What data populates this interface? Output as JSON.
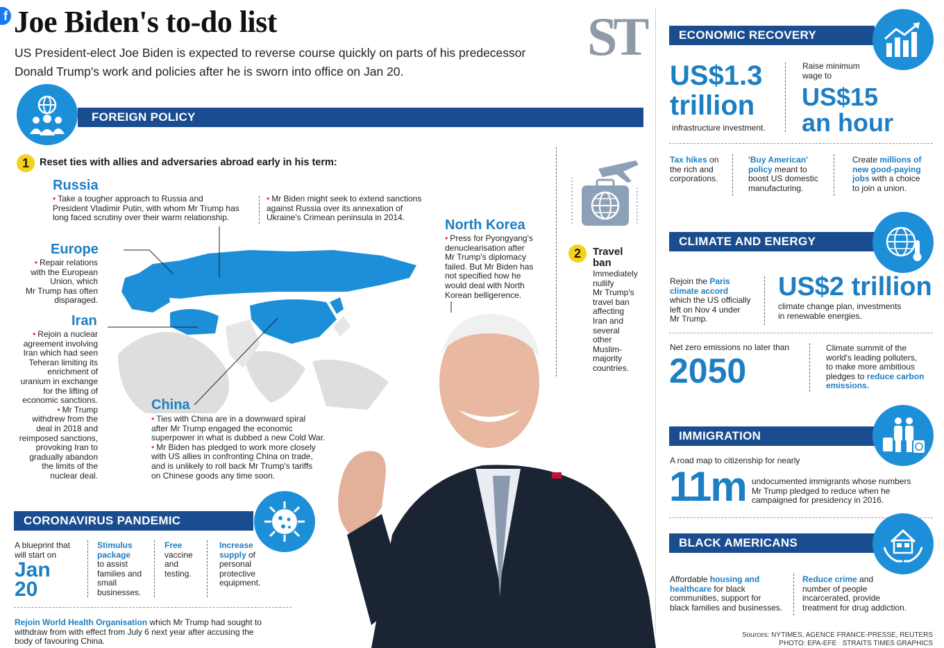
{
  "header": {
    "title": "Joe Biden's to-do list",
    "subtitle_line1": "US President-elect Joe Biden is expected to reverse course quickly on parts of his predecessor",
    "subtitle_line2": "Donald Trump's work and policies after he is sworn into office on Jan 20.",
    "logo": "ST"
  },
  "foreign_policy": {
    "title": "FOREIGN POLICY",
    "item1_number": "1",
    "item1_text": "Reset ties with allies and adversaries abroad early in his term:",
    "russia": {
      "name": "Russia",
      "text1": "Take a tougher approach to Russia and",
      "text2": "President Vladimir Putin, with whom Mr Trump has",
      "text3": "long faced scrutiny over their warm relationship.",
      "sanction1": "Mr Biden might seek to extend sanctions",
      "sanction2": "against Russia over its annexation of",
      "sanction3": "Ukraine's Crimean peninsula in 2014."
    },
    "europe": {
      "name": "Europe",
      "lines": [
        "Repair relations",
        "with the European",
        "Union, which",
        "Mr Trump has often",
        "disparaged."
      ]
    },
    "iran": {
      "name": "Iran",
      "lines": [
        "Rejoin a nuclear",
        "agreement involving",
        "Iran which had seen",
        "Teheran limiting its",
        "enrichment of",
        "uranium in exchange",
        "for the lifting of",
        "economic sanctions."
      ],
      "lines2": [
        "Mr Trump",
        "withdrew from the",
        "deal in 2018 and",
        "reimposed sanctions,",
        "provoking Iran to",
        "gradually abandon",
        "the limits of the",
        "nuclear deal."
      ]
    },
    "north_korea": {
      "name": "North Korea",
      "lines": [
        "Press for Pyongyang's",
        "denuclearisation after",
        "Mr Trump's diplomacy",
        "failed. But Mr Biden has",
        "not specified how he",
        "would deal with North",
        "Korean belligerence."
      ]
    },
    "china": {
      "name": "China",
      "lines": [
        "Ties with China are in a downward spiral",
        "after Mr Trump engaged the economic",
        "superpower in what is dubbed a new Cold War."
      ],
      "lines2": [
        "Mr Biden has pledged to work more closely",
        "with US allies in confronting China on trade,",
        "and is unlikely to roll back Mr Trump's tariffs",
        "on Chinese goods any time soon."
      ]
    },
    "item2_number": "2",
    "travel_ban_title1": "Travel",
    "travel_ban_title2": "ban",
    "travel_ban_lines": [
      "Immediately",
      "nullify",
      "Mr Trump's",
      "travel ban",
      "affecting",
      "Iran and",
      "several",
      "other",
      "Muslim-",
      "majority",
      "countries."
    ]
  },
  "coronavirus": {
    "title": "CORONAVIRUS PANDEMIC",
    "col1": {
      "line1": "A blueprint that",
      "line2": "will start on",
      "big1": "Jan",
      "big2": "20"
    },
    "col2": {
      "hl1": "Stimulus",
      "hl2": "package",
      "rest": [
        "to assist",
        "families and",
        "small",
        "businesses."
      ]
    },
    "col3": {
      "hl1": "Free",
      "rest": [
        "vaccine",
        "and",
        "testing."
      ]
    },
    "col4": {
      "hl1": "Increase",
      "hl2": "supply",
      "rest1": " of",
      "rest": [
        "personal",
        "protective",
        "equipment."
      ]
    },
    "who_highlight": "Rejoin World Health Organisation",
    "who_rest1": " which Mr Trump had sought to",
    "who_line2": "withdraw from with effect from July 6 next year after accusing the",
    "who_line3": "body of favouring China."
  },
  "economic": {
    "title": "ECONOMIC RECOVERY",
    "big1": "US$1.3",
    "big2": "trillion",
    "infra": "infrastructure investment.",
    "wage1": "Raise minimum",
    "wage2": "wage to",
    "wage_big1": "US$15",
    "wage_big2": "an hour",
    "tax_hl": "Tax hikes",
    "tax_rest1": " on",
    "tax_lines": [
      "the rich and",
      "corporations."
    ],
    "buy_hl1": "'Buy American'",
    "buy_hl2": "policy",
    "buy_rest1": " meant to",
    "buy_lines": [
      "boost US domestic",
      "manufacturing."
    ],
    "jobs_pre": "Create ",
    "jobs_hl1": "millions of",
    "jobs_hl2": "new good-paying",
    "jobs_hl3": "jobs",
    "jobs_rest": " with a choice",
    "jobs_line4": "to join a union."
  },
  "climate": {
    "title": "CLIMATE AND ENERGY",
    "paris_pre": "Rejoin the ",
    "paris_hl1": "Paris",
    "paris_hl2": "climate accord",
    "paris_lines": [
      "which the US officially",
      "left on Nov 4 under",
      "Mr Trump."
    ],
    "big": "US$2 trillion",
    "plan1": "climate change plan, investments",
    "plan2": "in renewable energies.",
    "netzero": "Net zero emissions no later than",
    "year": "2050",
    "summit_lines": [
      "Climate summit of the",
      "world's leading polluters,",
      "to make more ambitious"
    ],
    "summit_pre": "pledges to ",
    "summit_hl1": "reduce carbon",
    "summit_hl2": "emissions."
  },
  "immigration": {
    "title": "IMMIGRATION",
    "roadmap": "A road map to citizenship for nearly",
    "big": "11m",
    "lines": [
      "undocumented immigrants whose numbers",
      "Mr Trump pledged to reduce when he",
      "campaigned for presidency in 2016."
    ]
  },
  "black_americans": {
    "title": "BLACK AMERICANS",
    "col1_pre": "Affordable ",
    "col1_hl1": "housing and",
    "col1_hl2": "healthcare",
    "col1_rest": " for black",
    "col1_lines": [
      "communities, support for",
      "black families and businesses."
    ],
    "col2_hl": "Reduce crime",
    "col2_rest": " and",
    "col2_lines": [
      "number of people",
      "incarcerated, provide",
      "treatment for drug addiction."
    ]
  },
  "footer": {
    "sources": "Sources: NYTIMES, AGENCE FRANCE-PRESSE, REUTERS",
    "photo": "PHOTO: EPA-EFE   STRAITS TIMES GRAPHICS"
  },
  "colors": {
    "accent": "#1d7ec3",
    "bar": "#1a4d8f",
    "icon": "#1d8fd8",
    "number_badge": "#f5d11a"
  }
}
